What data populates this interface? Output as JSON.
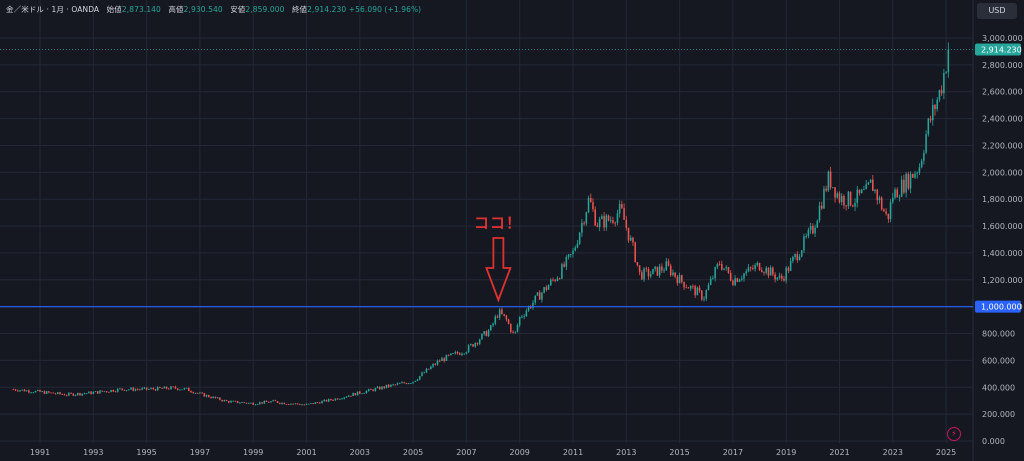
{
  "header": {
    "symbol": "金／米ドル · 1月 · OANDA",
    "open_label": "始値",
    "open": "2,873.140",
    "high_label": "高値",
    "high": "2,930.540",
    "low_label": "安値",
    "low": "2,859.000",
    "close_label": "終値",
    "close": "2,914.230",
    "change": "+56.090 (+1.96%)"
  },
  "currency_button": "USD",
  "annotation": {
    "text": "ココ！"
  },
  "colors": {
    "background": "#151821",
    "up": "#26a69a",
    "down": "#ef5350",
    "line_1000": "#2962ff",
    "annotation": "#e03131",
    "grid": "#242835"
  },
  "chart_data": {
    "type": "candlestick",
    "x_tick_labels": [
      "1991",
      "1993",
      "1995",
      "1997",
      "1999",
      "2001",
      "2003",
      "2005",
      "2007",
      "2009",
      "2011",
      "2013",
      "2015",
      "2017",
      "2019",
      "2021",
      "2023",
      "2025"
    ],
    "y_tick_labels": [
      "0.000",
      "200.000",
      "400.000",
      "600.000",
      "800.000",
      "1,000.000",
      "1,200.000",
      "1,400.000",
      "1,600.000",
      "1,800.000",
      "2,000.000",
      "2,200.000",
      "2,400.000",
      "2,600.000",
      "2,800.000",
      "3,000.000"
    ],
    "ylim": [
      0,
      3000
    ],
    "horizontal_line": {
      "value": 1000,
      "label": "1,000.000"
    },
    "last_price": {
      "value": 2914.23,
      "label": "2,914.230"
    },
    "annotation_x": 2008.2,
    "series": [
      {
        "values": [
          [
            1990.0,
            385
          ],
          [
            1991.0,
            365
          ],
          [
            1992.0,
            345
          ],
          [
            1993.0,
            360
          ],
          [
            1994.0,
            385
          ],
          [
            1995.0,
            385
          ],
          [
            1996.0,
            395
          ],
          [
            1996.5,
            385
          ],
          [
            1997.0,
            350
          ],
          [
            1998.0,
            295
          ],
          [
            1999.0,
            280
          ],
          [
            1999.8,
            295
          ],
          [
            2000.0,
            285
          ],
          [
            2001.0,
            270
          ],
          [
            2002.0,
            310
          ],
          [
            2003.0,
            360
          ],
          [
            2004.0,
            405
          ],
          [
            2005.0,
            445
          ],
          [
            2006.0,
            600
          ],
          [
            2007.0,
            680
          ],
          [
            2007.9,
            830
          ],
          [
            2008.2,
            960
          ],
          [
            2008.5,
            900
          ],
          [
            2008.8,
            780
          ],
          [
            2009.0,
            920
          ],
          [
            2009.8,
            1100
          ],
          [
            2010.5,
            1250
          ],
          [
            2011.0,
            1400
          ],
          [
            2011.6,
            1800
          ],
          [
            2011.9,
            1620
          ],
          [
            2012.4,
            1650
          ],
          [
            2012.8,
            1720
          ],
          [
            2013.3,
            1400
          ],
          [
            2013.5,
            1240
          ],
          [
            2014.0,
            1250
          ],
          [
            2014.5,
            1300
          ],
          [
            2015.0,
            1200
          ],
          [
            2015.9,
            1070
          ],
          [
            2016.5,
            1330
          ],
          [
            2017.0,
            1200
          ],
          [
            2018.0,
            1310
          ],
          [
            2018.8,
            1200
          ],
          [
            2019.5,
            1420
          ],
          [
            2020.0,
            1580
          ],
          [
            2020.6,
            1960
          ],
          [
            2021.0,
            1810
          ],
          [
            2021.5,
            1790
          ],
          [
            2022.0,
            1850
          ],
          [
            2022.2,
            1920
          ],
          [
            2022.8,
            1650
          ],
          [
            2023.0,
            1830
          ],
          [
            2023.6,
            1950
          ],
          [
            2024.0,
            2050
          ],
          [
            2024.3,
            2330
          ],
          [
            2024.8,
            2620
          ],
          [
            2025.1,
            2914.23
          ]
        ]
      }
    ]
  }
}
